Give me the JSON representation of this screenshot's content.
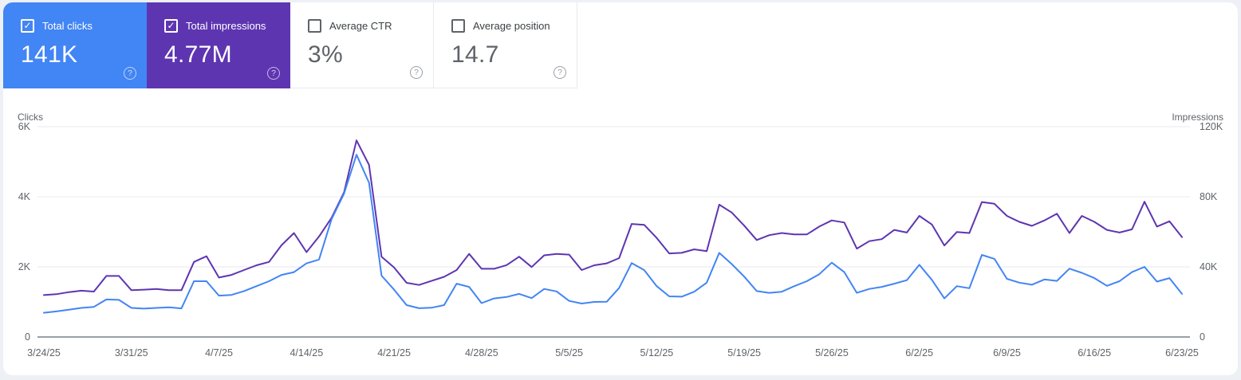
{
  "metric_cards": [
    {
      "label": "Total clicks",
      "value": "141K",
      "checked": true,
      "color": "#4285f4"
    },
    {
      "label": "Total impressions",
      "value": "4.77M",
      "checked": true,
      "color": "#5e35b1"
    },
    {
      "label": "Average CTR",
      "value": "3%",
      "checked": false,
      "color": "#ffffff"
    },
    {
      "label": "Average position",
      "value": "14.7",
      "checked": false,
      "color": "#ffffff"
    }
  ],
  "help_icon_glyph": "?",
  "checkmark_glyph": "✓",
  "colors": {
    "clicks_accent": "#4285f4",
    "impressions_accent": "#5e35b1",
    "gridline": "#e8eaed",
    "baseline": "#9aa0a6",
    "axis_text": "#5f6368",
    "page_background": "#edf0f5",
    "card_background": "#ffffff"
  },
  "chart_data": {
    "type": "line",
    "frequency": "daily",
    "start_date": "3/24/25",
    "end_date": "6/23/25",
    "x_tick_labels": [
      "3/24/25",
      "3/31/25",
      "4/7/25",
      "4/14/25",
      "4/21/25",
      "4/28/25",
      "5/5/25",
      "5/12/25",
      "5/19/25",
      "5/26/25",
      "6/2/25",
      "6/9/25",
      "6/16/25",
      "6/23/25"
    ],
    "x_tick_step_days": 7,
    "grid": true,
    "legend": "none",
    "left_axis": {
      "title": "Clicks",
      "ticks": [
        0,
        2000,
        4000,
        6000
      ],
      "tick_labels": [
        "0",
        "2K",
        "4K",
        "6K"
      ],
      "max": 6000
    },
    "right_axis": {
      "title": "Impressions",
      "ticks": [
        0,
        40000,
        80000,
        120000
      ],
      "tick_labels": [
        "0",
        "40K",
        "80K",
        "120K"
      ],
      "max": 120000
    },
    "series": [
      {
        "name": "Clicks",
        "axis": "left",
        "color": "#4285f4",
        "values": [
          690,
          730,
          780,
          830,
          860,
          1070,
          1060,
          830,
          810,
          830,
          845,
          815,
          1590,
          1590,
          1180,
          1200,
          1310,
          1450,
          1590,
          1770,
          1850,
          2100,
          2210,
          3360,
          4090,
          5200,
          4400,
          1750,
          1350,
          910,
          820,
          835,
          910,
          1520,
          1430,
          965,
          1100,
          1140,
          1230,
          1110,
          1370,
          1300,
          1030,
          955,
          1000,
          1005,
          1400,
          2110,
          1910,
          1450,
          1160,
          1150,
          1290,
          1550,
          2400,
          2080,
          1720,
          1310,
          1260,
          1290,
          1450,
          1590,
          1790,
          2120,
          1850,
          1260,
          1370,
          1430,
          1520,
          1620,
          2060,
          1630,
          1100,
          1450,
          1390,
          2340,
          2230,
          1660,
          1550,
          1490,
          1640,
          1600,
          1950,
          1830,
          1680,
          1460,
          1590,
          1850,
          2000,
          1580,
          1680,
          1230
        ]
      },
      {
        "name": "Impressions",
        "axis": "right",
        "color": "#5e35b1",
        "values": [
          23900,
          24400,
          25600,
          26400,
          25900,
          34800,
          34800,
          26700,
          27000,
          27400,
          26700,
          26700,
          42800,
          46100,
          33900,
          35400,
          38200,
          40900,
          42800,
          52300,
          59300,
          48400,
          57300,
          68000,
          82600,
          112200,
          98200,
          45800,
          39700,
          30900,
          29700,
          32000,
          34300,
          38200,
          47400,
          38900,
          38900,
          41000,
          45800,
          39900,
          46600,
          47400,
          47000,
          38200,
          40900,
          42000,
          45000,
          64500,
          64000,
          56500,
          47700,
          48000,
          50000,
          49000,
          75500,
          71000,
          63500,
          55300,
          58100,
          59300,
          58500,
          58500,
          63000,
          66500,
          65300,
          50400,
          54700,
          55800,
          61100,
          59600,
          69100,
          64200,
          52200,
          59900,
          59300,
          77000,
          76000,
          69100,
          65700,
          63400,
          66500,
          70300,
          59300,
          69100,
          65700,
          61100,
          59600,
          61400,
          77200,
          63000,
          66000,
          57000
        ]
      }
    ]
  }
}
